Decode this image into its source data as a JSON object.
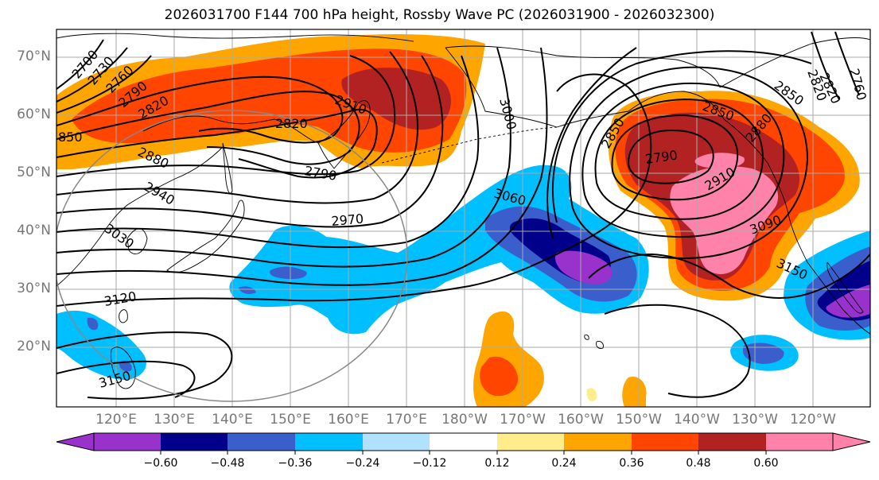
{
  "title": "2026031700 F144 700 hPa height, Rossby Wave PC (2026031900 - 2026032300)",
  "map": {
    "lat_labels": [
      "70°N",
      "60°N",
      "50°N",
      "40°N",
      "30°N",
      "20°N"
    ],
    "lon_labels": [
      "120°E",
      "130°E",
      "140°E",
      "150°E",
      "160°E",
      "170°E",
      "180°W",
      "170°W",
      "160°W",
      "150°W",
      "140°W",
      "130°W",
      "120°W"
    ],
    "contour_labels": [
      "2700",
      "2730",
      "2760",
      "2790",
      "2820",
      "850",
      "2880",
      "2940",
      "3030",
      "3120",
      "3150",
      "2820",
      "2910",
      "2790",
      "2970",
      "3000",
      "3060",
      "2850",
      "2880",
      "2850",
      "2790",
      "2910",
      "3090",
      "3150",
      "2820",
      "2850",
      "2760",
      "2820"
    ]
  },
  "colorbar": {
    "ticks": [
      "−0.60",
      "−0.48",
      "−0.36",
      "−0.24",
      "−0.12",
      "0.12",
      "0.24",
      "0.36",
      "0.48",
      "0.60"
    ],
    "colors": [
      "#9932cc",
      "#00008b",
      "#3a5fcd",
      "#00bfff",
      "#b0e2ff",
      "#ffffff",
      "#ffec8b",
      "#ffa500",
      "#ff4500",
      "#b22222",
      "#ff82ab"
    ]
  }
}
